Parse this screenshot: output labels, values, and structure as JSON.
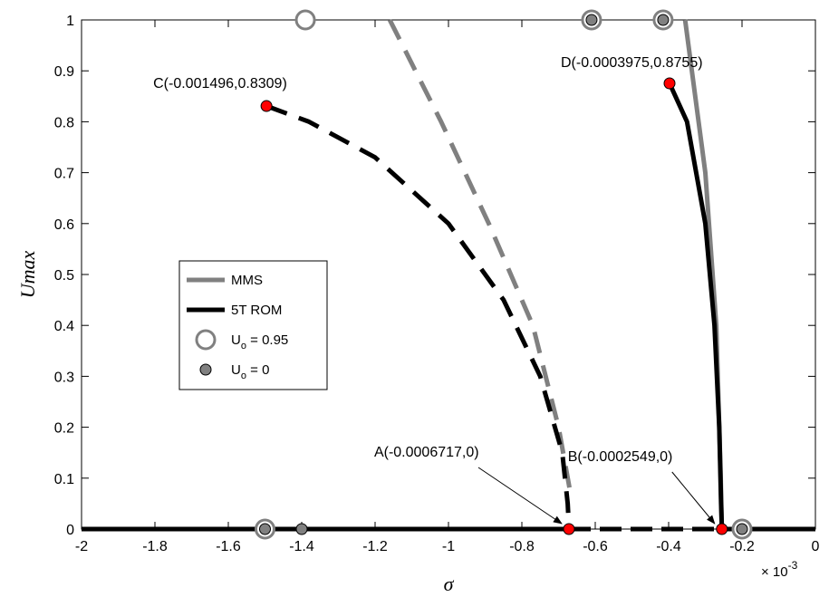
{
  "chart_data": {
    "type": "line",
    "title": "",
    "xlabel": "σ",
    "ylabel": "Umax",
    "xlim": [
      -2,
      0
    ],
    "ylim": [
      0,
      1
    ],
    "x_ticks": [
      -2,
      -1.8,
      -1.6,
      -1.4,
      -1.2,
      -1,
      -0.8,
      -0.6,
      -0.4,
      -0.2,
      0
    ],
    "y_ticks": [
      0,
      0.1,
      0.2,
      0.3,
      0.4,
      0.5,
      0.6,
      0.7,
      0.8,
      0.9,
      1
    ],
    "x_multiplier_text": "× 10",
    "x_multiplier_exp": "-3",
    "grid": false,
    "legend_position": "center-left",
    "legend": [
      {
        "label": "MMS",
        "kind": "line",
        "color": "#808080"
      },
      {
        "label": "5T ROM",
        "kind": "line",
        "color": "#000000"
      },
      {
        "label_main": "U",
        "label_sub": "o",
        "label_rest": " = 0.95",
        "kind": "open-circle",
        "color": "#808080"
      },
      {
        "label_main": "U",
        "label_sub": "o",
        "label_rest": " = 0",
        "kind": "filled-circle",
        "color": "#808080"
      }
    ],
    "series": [
      {
        "name": "MMS",
        "role": "mms-unstable",
        "color": "#808080",
        "style": "dashed",
        "points": [
          [
            -1.16,
            1.0
          ],
          [
            -1.02,
            0.8
          ],
          [
            -0.89,
            0.6
          ],
          [
            -0.77,
            0.4
          ],
          [
            -0.7,
            0.2
          ],
          [
            -0.665,
            0.06
          ]
        ]
      },
      {
        "name": "MMS",
        "role": "mms-stable",
        "color": "#808080",
        "style": "solid",
        "points": [
          [
            -0.355,
            1.0
          ],
          [
            -0.3,
            0.7
          ],
          [
            -0.27,
            0.4
          ],
          [
            -0.258,
            0.1
          ],
          [
            -0.255,
            0.0
          ]
        ]
      },
      {
        "name": "5T ROM",
        "role": "rom-unstable",
        "color": "#000000",
        "style": "dashed",
        "points": [
          [
            -1.496,
            0.8309
          ],
          [
            -1.38,
            0.8
          ],
          [
            -1.2,
            0.73
          ],
          [
            -1.0,
            0.6
          ],
          [
            -0.85,
            0.45
          ],
          [
            -0.75,
            0.3
          ],
          [
            -0.69,
            0.15
          ],
          [
            -0.675,
            0.05
          ],
          [
            -0.6717,
            0.0
          ]
        ]
      },
      {
        "name": "5T ROM",
        "role": "rom-stable",
        "color": "#000000",
        "style": "solid",
        "points": [
          [
            -0.3975,
            0.8755
          ],
          [
            -0.35,
            0.8
          ],
          [
            -0.3,
            0.6
          ],
          [
            -0.275,
            0.4
          ],
          [
            -0.262,
            0.2
          ],
          [
            -0.257,
            0.05
          ],
          [
            -0.2549,
            0.0
          ]
        ]
      },
      {
        "name": "5T ROM",
        "role": "rom-zero-solid",
        "color": "#000000",
        "style": "solid",
        "points": [
          [
            -2.0,
            0.0
          ],
          [
            -0.6717,
            0.0
          ]
        ]
      },
      {
        "name": "5T ROM",
        "role": "rom-zero-dashed",
        "color": "#000000",
        "style": "dashed",
        "points": [
          [
            -0.6717,
            0.0
          ],
          [
            -0.2549,
            0.0
          ]
        ]
      },
      {
        "name": "5T ROM",
        "role": "rom-zero-solid-right",
        "color": "#000000",
        "style": "solid",
        "points": [
          [
            -0.2549,
            0.0
          ],
          [
            0.0,
            0.0
          ]
        ]
      }
    ],
    "open_circles": [
      [
        -1.39,
        1.0
      ],
      [
        -0.61,
        1.0
      ],
      [
        -0.415,
        1.0
      ],
      [
        -1.5,
        0.0
      ],
      [
        -0.2,
        0.0
      ]
    ],
    "filled_circles": [
      [
        -0.61,
        1.0
      ],
      [
        -0.415,
        1.0
      ],
      [
        -1.5,
        0.0
      ],
      [
        -1.4,
        0.0
      ],
      [
        -0.2,
        0.0
      ]
    ],
    "red_points": [
      [
        -1.496,
        0.8309
      ],
      [
        -0.3975,
        0.8755
      ],
      [
        -0.6717,
        0.0
      ],
      [
        -0.2549,
        0.0
      ]
    ],
    "annotations": [
      {
        "text": "C(-0.001496,0.8309)",
        "x": -1.496,
        "y": 0.8309,
        "arrow": false
      },
      {
        "text": "D(-0.0003975,0.8755)",
        "x": -0.3975,
        "y": 0.8755,
        "arrow": false
      },
      {
        "text": "A(-0.0006717,0)",
        "x": -0.6717,
        "y": 0.0,
        "arrow": true
      },
      {
        "text": "B(-0.0002549,0)",
        "x": -0.2549,
        "y": 0.0,
        "arrow": true
      }
    ]
  }
}
